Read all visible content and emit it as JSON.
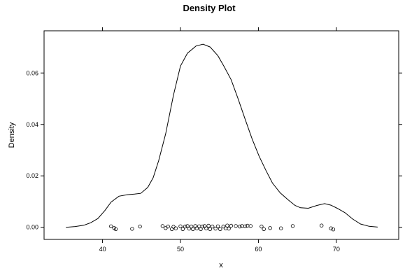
{
  "chart_data": {
    "type": "line",
    "title": "Density Plot",
    "xlabel": "x",
    "ylabel": "Density",
    "xlim": [
      32.5,
      78.0
    ],
    "ylim": [
      -0.0047,
      0.0764
    ],
    "x_ticks": [
      40,
      50,
      60,
      70
    ],
    "y_ticks": [
      0.0,
      0.02,
      0.04,
      0.06
    ],
    "x_tick_labels": [
      "40",
      "50",
      "60",
      "70"
    ],
    "y_tick_labels": [
      "0.00",
      "0.02",
      "0.04",
      "0.06"
    ],
    "grid": false,
    "series": [
      {
        "kind": "density-curve",
        "x": [
          35.3,
          36.5,
          37.6,
          38.5,
          39.4,
          40.3,
          41.1,
          42.1,
          43.2,
          44.1,
          44.9,
          45.8,
          46.5,
          47.2,
          48.1,
          49.1,
          50.0,
          50.9,
          52.0,
          52.9,
          53.8,
          54.8,
          55.6,
          56.5,
          57.4,
          58.3,
          59.2,
          60.1,
          61.0,
          61.8,
          62.8,
          63.8,
          64.7,
          65.4,
          66.4,
          67.5,
          68.5,
          69.3,
          70.1,
          71.1,
          72.1,
          73.1,
          74.2,
          75.3
        ],
        "y": [
          0.0,
          0.0003,
          0.0008,
          0.0018,
          0.0034,
          0.0065,
          0.0098,
          0.0121,
          0.0127,
          0.0129,
          0.0132,
          0.0155,
          0.0193,
          0.0259,
          0.0363,
          0.0514,
          0.0627,
          0.0677,
          0.0705,
          0.0712,
          0.0701,
          0.0667,
          0.0625,
          0.0574,
          0.0499,
          0.042,
          0.0343,
          0.0276,
          0.0219,
          0.0172,
          0.0134,
          0.0107,
          0.0085,
          0.0076,
          0.0074,
          0.0085,
          0.0092,
          0.0086,
          0.0074,
          0.0057,
          0.0032,
          0.0013,
          0.0004,
          0.0001
        ]
      },
      {
        "kind": "rug-points",
        "x": [
          41.1,
          41.5,
          41.7,
          43.8,
          44.8,
          47.7,
          48.1,
          48.4,
          48.9,
          49.1,
          49.4,
          50.0,
          50.3,
          50.6,
          50.9,
          51.1,
          51.4,
          51.6,
          51.9,
          52.1,
          52.4,
          52.6,
          52.8,
          53.1,
          53.3,
          53.6,
          53.8,
          54.1,
          54.5,
          54.8,
          55.1,
          55.5,
          55.8,
          56.0,
          56.2,
          56.5,
          57.1,
          57.6,
          57.9,
          58.3,
          58.6,
          59.0,
          60.4,
          60.7,
          61.5,
          62.9,
          64.4,
          68.1,
          69.3,
          69.6
        ],
        "y": [
          0.0004,
          -0.0003,
          -0.0007,
          -0.0006,
          0.0003,
          0.0005,
          -0.0003,
          0.0003,
          -0.0007,
          0.0002,
          -0.0004,
          0.0004,
          -0.0007,
          0.0003,
          0.0005,
          -0.0005,
          0.0003,
          -0.0007,
          0.0005,
          -0.0004,
          0.0004,
          -0.0007,
          0.0003,
          0.0005,
          -0.0004,
          0.0006,
          -0.0007,
          0.0003,
          -0.0005,
          0.0004,
          -0.0007,
          0.0003,
          -0.0004,
          0.0007,
          -0.0005,
          0.0006,
          0.0005,
          0.0003,
          0.0005,
          0.0004,
          0.0006,
          0.0005,
          0.0003,
          -0.0007,
          -0.0003,
          -0.0004,
          0.0005,
          0.0007,
          -0.0004,
          -0.0008
        ]
      }
    ]
  }
}
